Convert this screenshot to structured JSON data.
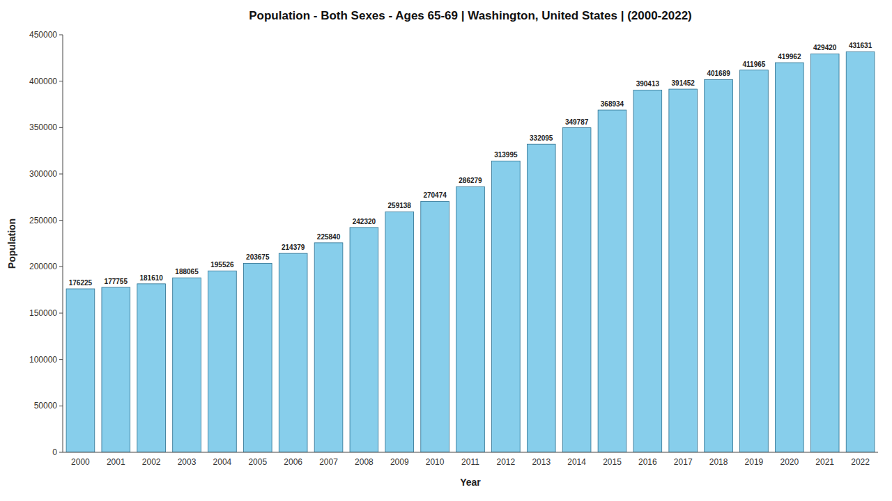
{
  "chart_data": {
    "type": "bar",
    "title": "Population - Both Sexes - Ages 65-69 | Washington, United States |  (2000-2022)",
    "xlabel": "Year",
    "ylabel": "Population",
    "categories": [
      "2000",
      "2001",
      "2002",
      "2003",
      "2004",
      "2005",
      "2006",
      "2007",
      "2008",
      "2009",
      "2010",
      "2011",
      "2012",
      "2013",
      "2014",
      "2015",
      "2016",
      "2017",
      "2018",
      "2019",
      "2020",
      "2021",
      "2022"
    ],
    "values": [
      176225,
      177755,
      181610,
      188065,
      195526,
      203675,
      214379,
      225840,
      242320,
      259138,
      270474,
      286279,
      313995,
      332095,
      349787,
      368934,
      390413,
      391452,
      401689,
      411965,
      419962,
      429420,
      431631
    ],
    "color": "#87CEEB",
    "ylim": [
      0,
      450000
    ],
    "yticks": [
      0,
      50000,
      100000,
      150000,
      200000,
      250000,
      300000,
      350000,
      400000,
      450000
    ],
    "grid": false,
    "data_labels": true
  }
}
